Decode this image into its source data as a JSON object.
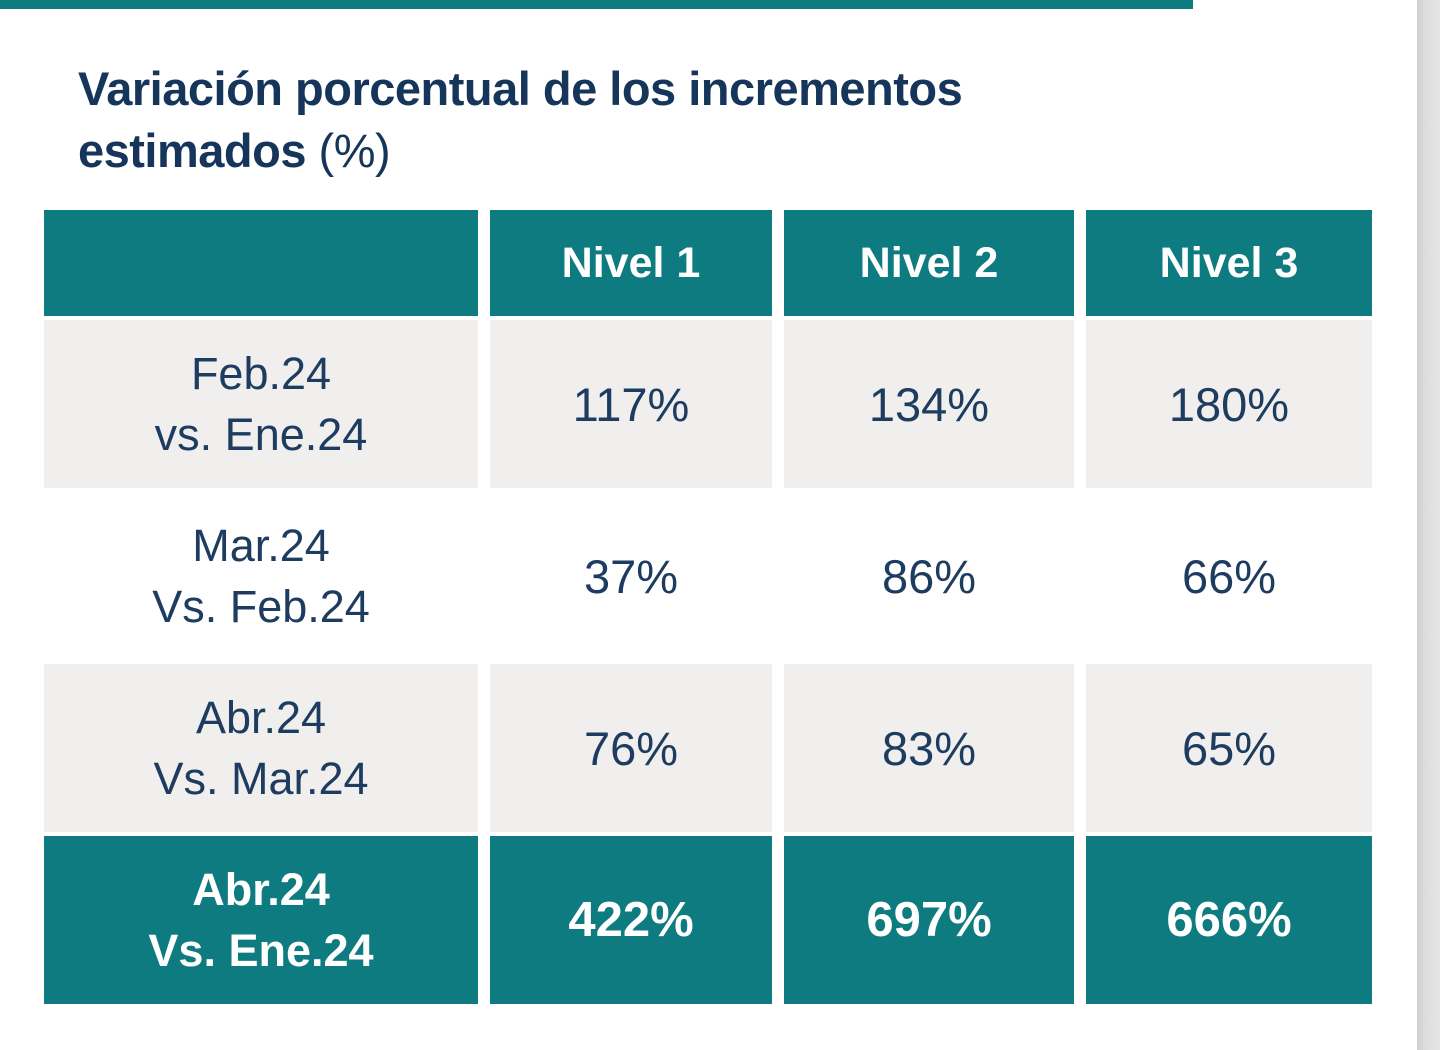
{
  "title": {
    "line1": "Variación porcentual de los incrementos",
    "line2_bold": "estimados",
    "line2_suffix": " (%)"
  },
  "table": {
    "columns": [
      "Nivel 1",
      "Nivel 2",
      "Nivel 3"
    ],
    "rows": [
      {
        "label_line1": "Feb.24",
        "label_line2": "vs. Ene.24",
        "v1": "117%",
        "v2": "134%",
        "v3": "180%"
      },
      {
        "label_line1": "Mar.24",
        "label_line2": "Vs. Feb.24",
        "v1": "37%",
        "v2": "86%",
        "v3": "66%"
      },
      {
        "label_line1": "Abr.24",
        "label_line2": "Vs. Mar.24",
        "v1": "76%",
        "v2": "83%",
        "v3": "65%"
      },
      {
        "label_line1": "Abr.24",
        "label_line2": "Vs. Ene.24",
        "v1": "422%",
        "v2": "697%",
        "v3": "666%"
      }
    ]
  },
  "colors": {
    "teal": "#0e7b80",
    "row_gray": "#f0efed",
    "navy_text": "#1d3c60",
    "title_text": "#16355a",
    "header_text": "#ffffff",
    "scroll_track": "#dedede"
  },
  "chart_data": {
    "type": "table",
    "title": "Variación porcentual de los incrementos estimados (%)",
    "columns": [
      "",
      "Nivel 1",
      "Nivel 2",
      "Nivel 3"
    ],
    "rows": [
      [
        "Feb.24 vs. Ene.24",
        "117%",
        "134%",
        "180%"
      ],
      [
        "Mar.24 Vs. Feb.24",
        "37%",
        "86%",
        "66%"
      ],
      [
        "Abr.24 Vs. Mar.24",
        "76%",
        "83%",
        "65%"
      ],
      [
        "Abr.24 Vs. Ene.24",
        "422%",
        "697%",
        "666%"
      ]
    ],
    "highlighted_row": "Abr.24 Vs. Ene.24",
    "series": [
      {
        "name": "Nivel 1",
        "values": [
          117,
          37,
          76,
          422
        ]
      },
      {
        "name": "Nivel 2",
        "values": [
          134,
          86,
          83,
          697
        ]
      },
      {
        "name": "Nivel 3",
        "values": [
          180,
          66,
          65,
          666
        ]
      }
    ],
    "unit": "%"
  }
}
